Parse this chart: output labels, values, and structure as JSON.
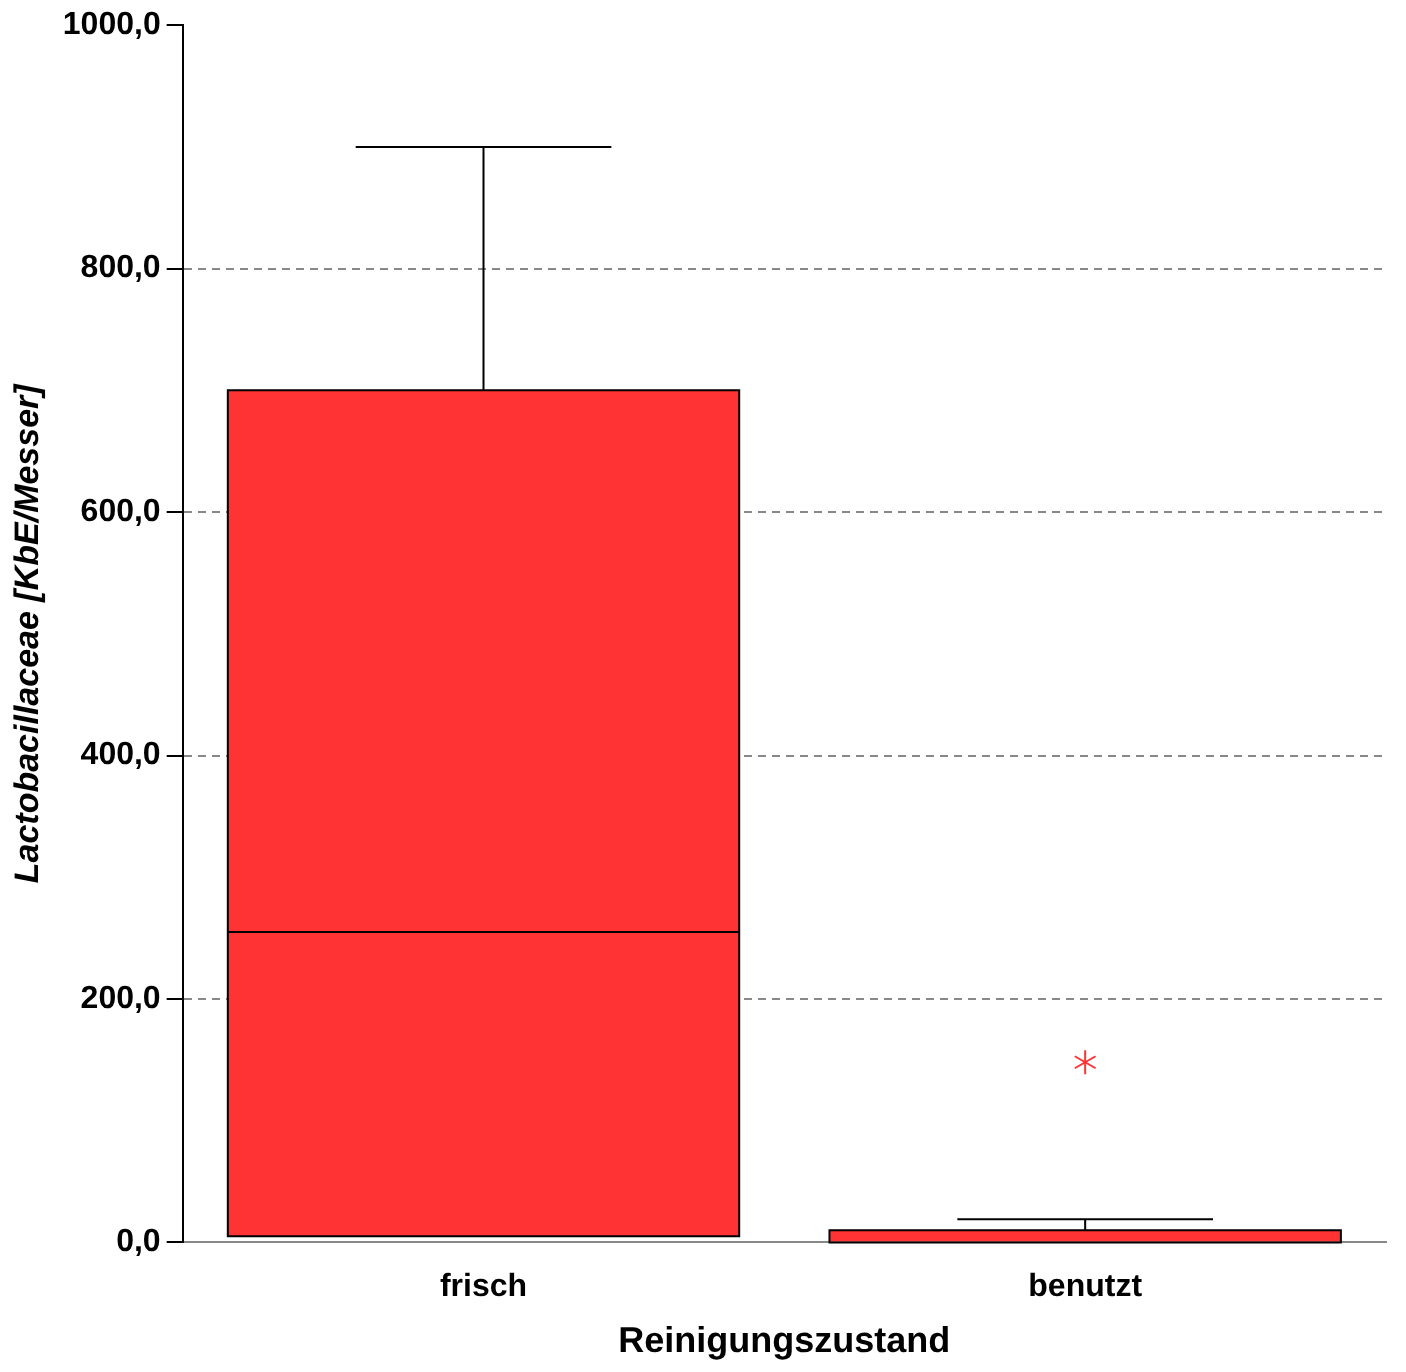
{
  "chart_data": {
    "type": "box",
    "xlabel": "Reinigungszustand",
    "ylabel": "Lactobacillaceae [KbE/Messer]",
    "categories": [
      "frisch",
      "benutzt"
    ],
    "color": "#ff3333",
    "boxes": [
      {
        "low": 5,
        "q1": 5,
        "median": 255,
        "q3": 700,
        "high": 900
      },
      {
        "low": 0,
        "q1": 0,
        "median": 0,
        "q3": 10,
        "high": 19,
        "outliers": [
          148
        ]
      }
    ],
    "ylim": [
      0,
      1000
    ],
    "yticks": [
      {
        "value": 0,
        "label": "0,0"
      },
      {
        "value": 200,
        "label": "200,0"
      },
      {
        "value": 400,
        "label": "400,0"
      },
      {
        "value": 600,
        "label": "600,0"
      },
      {
        "value": 800,
        "label": "800,0"
      },
      {
        "value": 1000,
        "label": "1000,0"
      }
    ],
    "grid": "y",
    "marker": "star"
  }
}
